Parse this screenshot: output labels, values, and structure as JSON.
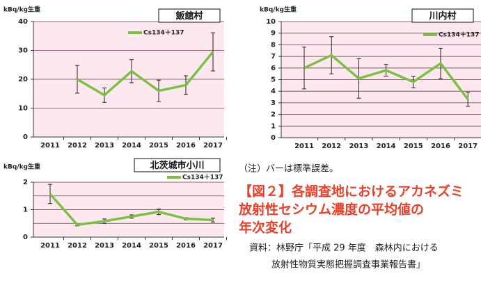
{
  "chart_data": [
    {
      "type": "line",
      "title": "飯舘村",
      "y_label": "kBq/kg生重",
      "categories": [
        "2011",
        "2012",
        "2013",
        "2014",
        "2015",
        "2016",
        "2017"
      ],
      "series": [
        {
          "name": "Cs134＋137",
          "color": "#7ac143",
          "values": [
            null,
            20,
            14.5,
            22.8,
            16,
            18,
            29.5
          ],
          "errors": [
            null,
            4.8,
            2.5,
            4,
            3.7,
            3.2,
            6.6
          ]
        }
      ],
      "ylim": [
        0,
        40
      ],
      "yticks": [
        0,
        10,
        20,
        30,
        40
      ],
      "grid": true
    },
    {
      "type": "line",
      "title": "川内村",
      "y_label": "kBq/kg生重",
      "categories": [
        "2011",
        "2012",
        "2013",
        "2014",
        "2015",
        "2016",
        "2017"
      ],
      "series": [
        {
          "name": "Cs134＋137",
          "color": "#7ac143",
          "values": [
            6,
            7.1,
            5.1,
            5.8,
            4.8,
            6.4,
            3.3
          ],
          "errors": [
            1.8,
            1.6,
            1.7,
            0.5,
            0.5,
            1.3,
            0.6
          ]
        }
      ],
      "ylim": [
        0,
        10
      ],
      "yticks": [
        0,
        1,
        2,
        3,
        4,
        5,
        6,
        7,
        8,
        9,
        10
      ],
      "grid": true
    },
    {
      "type": "line",
      "title": "北茨城市小川",
      "y_label": "kBq/kg生重",
      "categories": [
        "2011",
        "2012",
        "2013",
        "2014",
        "2015",
        "2016",
        "2017"
      ],
      "series": [
        {
          "name": "Cs134＋137",
          "color": "#7ac143",
          "values": [
            1.57,
            0.45,
            0.58,
            0.75,
            0.92,
            0.67,
            0.62
          ],
          "errors": [
            0.35,
            0.04,
            0.08,
            0.06,
            0.1,
            0.04,
            0.07
          ]
        }
      ],
      "ylim": [
        0,
        2
      ],
      "yticks": [
        0,
        1,
        2
      ],
      "minor_yticks": [
        0.5,
        1.5
      ],
      "grid": true
    }
  ],
  "note": "（注）バーは標準誤差。",
  "caption": [
    "【図２】各調査地におけるアカネズミ",
    "放射性セシウム濃度の平均値の",
    "年次変化"
  ],
  "source": [
    "資料：林野庁「平成 29 年度　森林内における",
    "放射性物質実態把握調査事業報告書」"
  ]
}
